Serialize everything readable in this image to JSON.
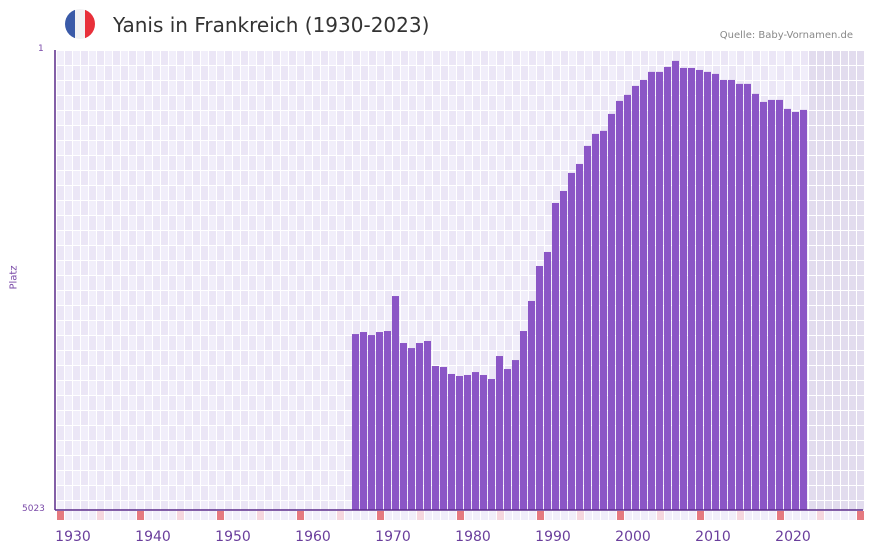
{
  "header": {
    "title": "Yanis in Frankreich (1930-2023)",
    "source": "Quelle: Baby-Vornamen.de",
    "flag_colors": [
      "#3a5aa8",
      "#f2f2f4",
      "#e8303a"
    ]
  },
  "axis": {
    "y_top": "1",
    "y_bottom": "5023",
    "y_label": "Platz",
    "x_ticks": [
      "1930",
      "1940",
      "1950",
      "1960",
      "1970",
      "1980",
      "1990",
      "2000",
      "2010",
      "2020"
    ]
  },
  "colors": {
    "bar": "#8b56c6",
    "axis": "#5a2a8a",
    "grid_a": "#f1eefa",
    "grid_b": "#ebe6f6",
    "future": "#e2dcee",
    "tick_red": "#e57a80",
    "tick_pink": "#f5d6de"
  },
  "chart_data": {
    "type": "bar",
    "title": "Yanis in Frankreich (1930-2023)",
    "xlabel": "",
    "ylabel": "Platz",
    "ylim": [
      5023,
      1
    ],
    "x_range": [
      1928,
      2029
    ],
    "x": [
      1967,
      1968,
      1969,
      1970,
      1971,
      1972,
      1973,
      1974,
      1975,
      1976,
      1977,
      1978,
      1979,
      1980,
      1981,
      1982,
      1983,
      1984,
      1985,
      1986,
      1987,
      1988,
      1989,
      1990,
      1991,
      1992,
      1993,
      1994,
      1995,
      1996,
      1997,
      1998,
      1999,
      2000,
      2001,
      2002,
      2003,
      2004,
      2005,
      2006,
      2007,
      2008,
      2009,
      2010,
      2011,
      2012,
      2013,
      2014,
      2015,
      2016,
      2017,
      2018,
      2019,
      2020,
      2021,
      2022,
      2023
    ],
    "values": [
      3102,
      3080,
      3113,
      3080,
      3069,
      2687,
      3200,
      3255,
      3200,
      3178,
      3451,
      3462,
      3538,
      3560,
      3549,
      3517,
      3549,
      3593,
      3342,
      3484,
      3386,
      3069,
      2741,
      2359,
      2206,
      1671,
      1540,
      1343,
      1245,
      1048,
      917,
      884,
      699,
      557,
      491,
      393,
      328,
      240,
      240,
      186,
      120,
      197,
      197,
      219,
      240,
      262,
      328,
      328,
      371,
      371,
      480,
      568,
      546,
      546,
      644,
      677,
      655
    ],
    "grid": true
  }
}
